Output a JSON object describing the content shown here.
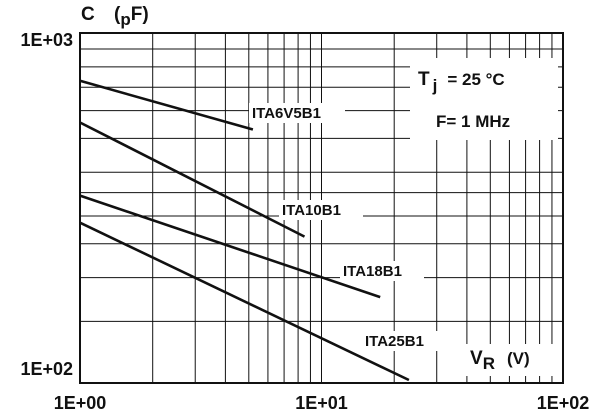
{
  "chart_data": {
    "type": "line",
    "x_scale": "log",
    "y_scale": "log",
    "xlim": [
      1,
      100
    ],
    "ylim": [
      100,
      1000
    ],
    "x_ticks": [
      "1E+00",
      "1E+01",
      "1E+02"
    ],
    "y_ticks": [
      "1E+02",
      "1E+03"
    ],
    "ylabel": {
      "main": "C",
      "unit_prefix": "(",
      "unit_sub": "p",
      "unit_suffix": "F)"
    },
    "xlabel": {
      "main": "V",
      "sub": "R",
      "unit": "(V)"
    },
    "conditions": {
      "temp_main": "T",
      "temp_sub": "j",
      "temp_value": "= 25 °C",
      "freq": "F= 1 MHz"
    },
    "grid": true,
    "series": [
      {
        "name": "ITA6V5B1",
        "x": [
          1,
          5.2
        ],
        "y": [
          730,
          530
        ]
      },
      {
        "name": "ITA10B1",
        "x": [
          1,
          8.5
        ],
        "y": [
          555,
          262
        ]
      },
      {
        "name": "ITA18B1",
        "x": [
          1,
          17.5
        ],
        "y": [
          343,
          176
        ]
      },
      {
        "name": "ITA25B1",
        "x": [
          1,
          23
        ],
        "y": [
          287,
          102
        ]
      }
    ]
  }
}
